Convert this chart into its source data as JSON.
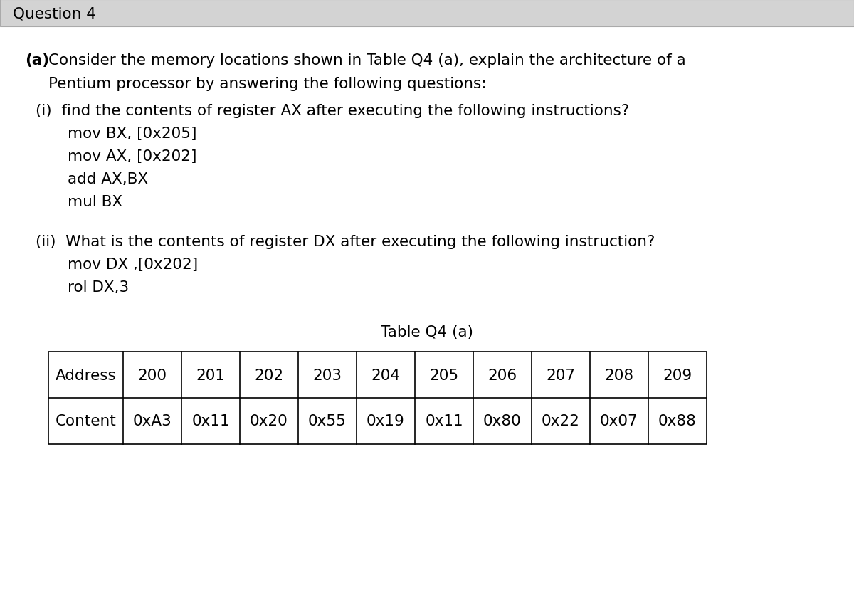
{
  "title_box_text": "Question 4",
  "title_box_bg": "#d3d3d3",
  "bg_color": "#ffffff",
  "text_color": "#000000",
  "font_family": "DejaVu Sans",
  "body_fontsize": 15.5,
  "code_fontsize": 15.5,
  "part_a_bold": "(a)",
  "part_a_line1_rest": " Consider the memory locations shown in Table Q4 (a), explain the architecture of a",
  "part_a_line2": "Pentium processor by answering the following questions:",
  "part_i_label": "(i)  find the contents of register AX after executing the following instructions?",
  "code_i": [
    "mov BX, [0x205]",
    "mov AX, [0x202]",
    "add AX,BX",
    "mul BX"
  ],
  "part_ii_label": "(ii)  What is the contents of register DX after executing the following instruction?",
  "code_ii": [
    "mov DX ,[0x202]",
    "rol DX,3"
  ],
  "table_title": "Table Q4 (a)",
  "table_headers": [
    "Address",
    "200",
    "201",
    "202",
    "203",
    "204",
    "205",
    "206",
    "207",
    "208",
    "209"
  ],
  "table_contents": [
    "Content",
    "0xA3",
    "0x11",
    "0x20",
    "0x55",
    "0x19",
    "0x11",
    "0x80",
    "0x22",
    "0x07",
    "0x88"
  ]
}
